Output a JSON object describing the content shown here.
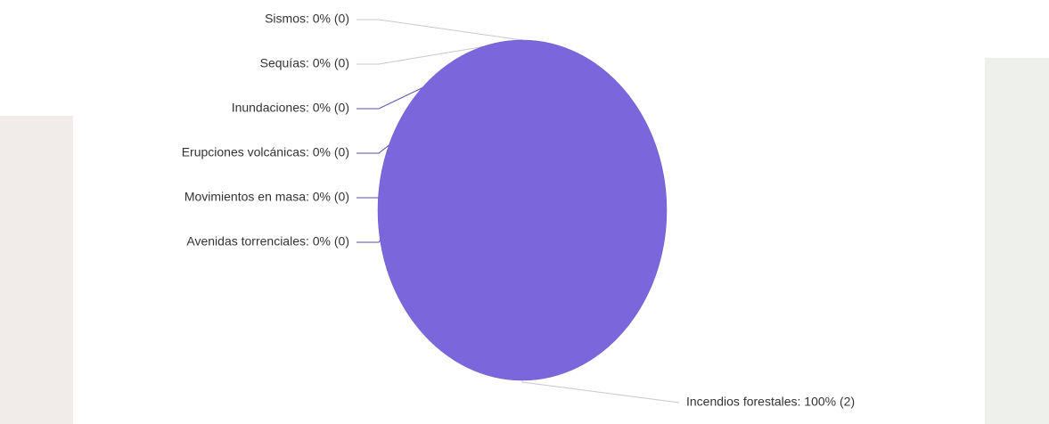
{
  "chart_data": {
    "type": "pie",
    "values": [
      0,
      0,
      0,
      0,
      0,
      0,
      100
    ],
    "value_labels": [
      "Sismos: 0% (0)",
      "Sequías: 0% (0)",
      "Inundaciones: 0% (0)",
      "Erupciones volcánicas: 0% (0)",
      "Movimientos en masa: 0% (0)",
      "Avenidas torrenciales: 0% (0)",
      "Incendios forestales: 100% (2)"
    ],
    "color": "#7b66dc"
  }
}
